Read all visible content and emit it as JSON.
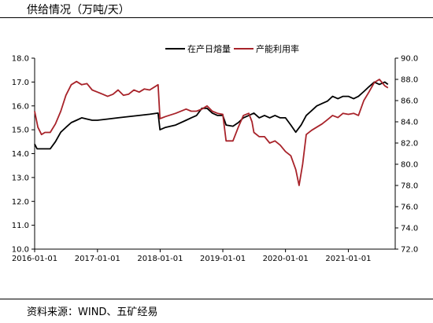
{
  "title": "供给情况（万吨/天）",
  "source": "资料来源：WIND、五矿经易",
  "chart_data": {
    "type": "line",
    "title": "供给情况（万吨/天）",
    "x_ticks": [
      "2016-01-01",
      "2017-01-01",
      "2018-01-01",
      "2019-01-01",
      "2020-01-01",
      "2021-01-01"
    ],
    "y_left": {
      "ticks": [
        "10.0",
        "11.0",
        "12.0",
        "13.0",
        "14.0",
        "15.0",
        "16.0",
        "17.0",
        "18.0"
      ],
      "range": [
        10,
        18
      ]
    },
    "y_right": {
      "ticks": [
        "72.0",
        "74.0",
        "76.0",
        "78.0",
        "80.0",
        "82.0",
        "84.0",
        "86.0",
        "88.0",
        "90.0"
      ],
      "range": [
        72,
        90
      ]
    },
    "legend_position": "top-right",
    "grid": false,
    "series": [
      {
        "name": "在产日熔量",
        "color": "#000000",
        "axis": "left",
        "points": [
          [
            "2016-01-01",
            14.4
          ],
          [
            "2016-01-15",
            14.2
          ],
          [
            "2016-02-01",
            14.2
          ],
          [
            "2016-03-01",
            14.2
          ],
          [
            "2016-04-01",
            14.2
          ],
          [
            "2016-05-01",
            14.5
          ],
          [
            "2016-06-01",
            14.9
          ],
          [
            "2016-07-01",
            15.1
          ],
          [
            "2016-08-01",
            15.3
          ],
          [
            "2016-09-01",
            15.4
          ],
          [
            "2016-10-01",
            15.5
          ],
          [
            "2016-11-01",
            15.45
          ],
          [
            "2016-12-01",
            15.4
          ],
          [
            "2017-01-01",
            15.4
          ],
          [
            "2017-03-01",
            15.45
          ],
          [
            "2017-05-01",
            15.5
          ],
          [
            "2017-07-01",
            15.55
          ],
          [
            "2017-09-01",
            15.6
          ],
          [
            "2017-11-01",
            15.65
          ],
          [
            "2017-12-20",
            15.7
          ],
          [
            "2017-12-31",
            15.0
          ],
          [
            "2018-02-01",
            15.1
          ],
          [
            "2018-04-01",
            15.2
          ],
          [
            "2018-06-01",
            15.4
          ],
          [
            "2018-07-01",
            15.5
          ],
          [
            "2018-08-01",
            15.6
          ],
          [
            "2018-09-01",
            15.9
          ],
          [
            "2018-10-01",
            15.9
          ],
          [
            "2018-11-01",
            15.7
          ],
          [
            "2018-12-01",
            15.6
          ],
          [
            "2019-01-01",
            15.6
          ],
          [
            "2019-01-20",
            15.2
          ],
          [
            "2019-03-01",
            15.15
          ],
          [
            "2019-04-01",
            15.3
          ],
          [
            "2019-05-01",
            15.5
          ],
          [
            "2019-06-01",
            15.6
          ],
          [
            "2019-07-01",
            15.7
          ],
          [
            "2019-08-01",
            15.5
          ],
          [
            "2019-09-01",
            15.6
          ],
          [
            "2019-10-01",
            15.5
          ],
          [
            "2019-11-01",
            15.6
          ],
          [
            "2019-12-01",
            15.5
          ],
          [
            "2020-01-01",
            15.5
          ],
          [
            "2020-02-01",
            15.2
          ],
          [
            "2020-03-01",
            14.9
          ],
          [
            "2020-04-01",
            15.2
          ],
          [
            "2020-05-01",
            15.6
          ],
          [
            "2020-06-01",
            15.8
          ],
          [
            "2020-07-01",
            16.0
          ],
          [
            "2020-08-01",
            16.1
          ],
          [
            "2020-09-01",
            16.2
          ],
          [
            "2020-10-01",
            16.4
          ],
          [
            "2020-11-01",
            16.3
          ],
          [
            "2020-12-01",
            16.4
          ],
          [
            "2021-01-01",
            16.4
          ],
          [
            "2021-02-01",
            16.3
          ],
          [
            "2021-03-01",
            16.4
          ],
          [
            "2021-04-01",
            16.6
          ],
          [
            "2021-05-01",
            16.8
          ],
          [
            "2021-06-01",
            17.0
          ],
          [
            "2021-07-01",
            16.9
          ],
          [
            "2021-08-01",
            17.0
          ],
          [
            "2021-08-20",
            16.9
          ]
        ]
      },
      {
        "name": "产能利用率",
        "color": "#a8232a",
        "axis": "right",
        "points": [
          [
            "2016-01-01",
            85.0
          ],
          [
            "2016-01-20",
            83.5
          ],
          [
            "2016-02-10",
            82.8
          ],
          [
            "2016-03-01",
            83.0
          ],
          [
            "2016-04-01",
            83.0
          ],
          [
            "2016-05-01",
            83.8
          ],
          [
            "2016-06-01",
            85.0
          ],
          [
            "2016-07-01",
            86.5
          ],
          [
            "2016-08-01",
            87.5
          ],
          [
            "2016-09-01",
            87.8
          ],
          [
            "2016-10-01",
            87.5
          ],
          [
            "2016-11-01",
            87.6
          ],
          [
            "2016-12-01",
            87.0
          ],
          [
            "2017-01-01",
            86.8
          ],
          [
            "2017-02-01",
            86.6
          ],
          [
            "2017-03-01",
            86.4
          ],
          [
            "2017-04-01",
            86.6
          ],
          [
            "2017-05-01",
            87.0
          ],
          [
            "2017-06-01",
            86.5
          ],
          [
            "2017-07-01",
            86.6
          ],
          [
            "2017-08-01",
            87.0
          ],
          [
            "2017-09-01",
            86.8
          ],
          [
            "2017-10-01",
            87.1
          ],
          [
            "2017-11-01",
            87.0
          ],
          [
            "2017-12-20",
            87.5
          ],
          [
            "2017-12-31",
            84.3
          ],
          [
            "2018-02-01",
            84.5
          ],
          [
            "2018-04-01",
            84.8
          ],
          [
            "2018-06-01",
            85.2
          ],
          [
            "2018-07-01",
            85.0
          ],
          [
            "2018-08-01",
            85.0
          ],
          [
            "2018-09-01",
            85.2
          ],
          [
            "2018-10-01",
            85.5
          ],
          [
            "2018-11-01",
            85.0
          ],
          [
            "2018-12-01",
            84.8
          ],
          [
            "2019-01-01",
            84.7
          ],
          [
            "2019-01-20",
            82.2
          ],
          [
            "2019-03-01",
            82.2
          ],
          [
            "2019-04-01",
            83.5
          ],
          [
            "2019-05-01",
            84.6
          ],
          [
            "2019-06-01",
            84.8
          ],
          [
            "2019-06-20",
            84.0
          ],
          [
            "2019-07-01",
            83.0
          ],
          [
            "2019-08-01",
            82.6
          ],
          [
            "2019-09-01",
            82.6
          ],
          [
            "2019-10-01",
            82.0
          ],
          [
            "2019-11-01",
            82.2
          ],
          [
            "2019-12-01",
            81.8
          ],
          [
            "2020-01-01",
            81.2
          ],
          [
            "2020-02-01",
            80.8
          ],
          [
            "2020-03-01",
            79.5
          ],
          [
            "2020-03-20",
            78.0
          ],
          [
            "2020-04-10",
            80.0
          ],
          [
            "2020-05-01",
            82.8
          ],
          [
            "2020-06-01",
            83.2
          ],
          [
            "2020-07-01",
            83.5
          ],
          [
            "2020-08-01",
            83.8
          ],
          [
            "2020-09-01",
            84.2
          ],
          [
            "2020-10-01",
            84.6
          ],
          [
            "2020-11-01",
            84.4
          ],
          [
            "2020-12-01",
            84.8
          ],
          [
            "2021-01-01",
            84.7
          ],
          [
            "2021-02-01",
            84.8
          ],
          [
            "2021-03-01",
            84.6
          ],
          [
            "2021-04-01",
            86.0
          ],
          [
            "2021-05-01",
            86.8
          ],
          [
            "2021-06-01",
            87.7
          ],
          [
            "2021-07-01",
            88.0
          ],
          [
            "2021-08-01",
            87.4
          ],
          [
            "2021-08-20",
            87.2
          ]
        ]
      }
    ]
  }
}
